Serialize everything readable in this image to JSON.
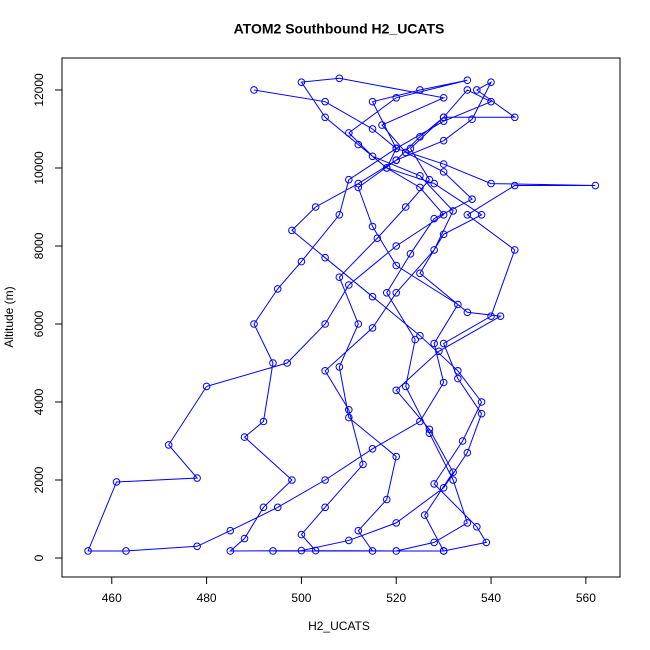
{
  "chart_data": {
    "type": "line",
    "title": "ATOM2 Southbound H2_UCATS",
    "x_label": "H2_UCATS",
    "y_label": "Altitude (m)",
    "color": "#0000ff",
    "markers": true,
    "x": [
      490,
      505,
      515,
      520,
      518,
      525,
      530,
      520,
      510,
      505,
      497,
      480,
      472,
      478,
      461,
      455,
      463,
      478,
      485,
      495,
      505,
      515,
      525,
      530,
      528,
      533,
      520,
      515,
      512,
      520,
      525,
      530,
      535,
      540,
      530,
      520,
      510,
      508,
      500,
      495,
      490,
      494,
      492,
      488,
      498,
      492,
      488,
      485,
      500,
      510,
      520,
      530,
      535,
      538,
      533,
      530,
      540,
      545,
      535,
      545,
      562,
      540,
      530,
      520,
      515,
      525,
      535,
      520,
      510,
      515,
      525,
      532,
      528,
      520,
      515,
      505,
      510,
      513,
      505,
      500,
      503,
      520,
      528,
      535,
      532,
      527,
      522,
      524,
      518,
      523,
      528,
      536,
      530,
      522,
      517,
      530,
      508,
      500,
      505,
      512,
      518,
      528,
      538,
      530,
      525,
      535,
      542,
      529,
      520,
      527,
      532,
      526,
      530,
      515,
      512,
      518,
      520,
      510,
      508,
      512,
      508,
      516,
      522,
      527,
      523,
      530,
      545,
      537,
      540,
      536,
      530,
      520,
      512,
      503,
      498,
      505,
      515,
      525,
      533,
      538,
      534,
      528,
      537,
      539,
      530,
      494
    ],
    "values": [
      12000,
      11700,
      11000,
      10500,
      10000,
      9500,
      8800,
      8000,
      7000,
      6000,
      5000,
      4400,
      2900,
      2050,
      1950,
      180,
      180,
      300,
      700,
      1300,
      2000,
      2800,
      3500,
      4500,
      5500,
      6500,
      7500,
      8500,
      9500,
      10200,
      10800,
      11300,
      12000,
      11700,
      11200,
      10500,
      9700,
      8800,
      7600,
      6900,
      6000,
      5000,
      3500,
      3100,
      2000,
      1300,
      500,
      180,
      190,
      450,
      900,
      1800,
      2700,
      3700,
      4600,
      5500,
      6200,
      7900,
      8800,
      9550,
      9550,
      9600,
      10100,
      10500,
      11700,
      12000,
      12250,
      11800,
      10900,
      10300,
      9800,
      8900,
      7900,
      6800,
      5900,
      4800,
      3800,
      2400,
      1300,
      600,
      190,
      180,
      400,
      900,
      2000,
      3200,
      4400,
      5600,
      6800,
      7800,
      8700,
      9200,
      9900,
      10400,
      11100,
      11800,
      12300,
      12200,
      11300,
      10600,
      10000,
      9600,
      8800,
      8300,
      7300,
      6300,
      6200,
      5300,
      4300,
      3300,
      2200,
      1100,
      180,
      180,
      700,
      1500,
      2600,
      3600,
      4900,
      6000,
      7200,
      8200,
      9000,
      9700,
      10500,
      11300,
      11300,
      12000,
      12200,
      11250,
      10700,
      10200,
      9600,
      9000,
      8400,
      7700,
      6700,
      5700,
      4800,
      4000,
      3000,
      1900,
      800,
      400,
      180,
      180
    ],
    "xlim": [
      449.5,
      567.2
    ],
    "ylim": [
      -487,
      12820
    ],
    "xticks": [
      460,
      480,
      500,
      520,
      540,
      560
    ],
    "yticks": [
      0,
      2000,
      4000,
      6000,
      8000,
      10000,
      12000
    ]
  }
}
